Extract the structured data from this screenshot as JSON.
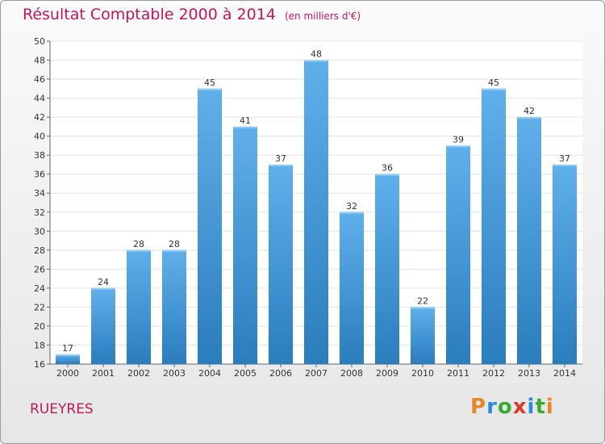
{
  "chart_data": {
    "type": "bar",
    "title": "Résultat Comptable 2000 à 2014",
    "subtitle": "(en milliers d'€)",
    "categories": [
      "2000",
      "2001",
      "2002",
      "2003",
      "2004",
      "2005",
      "2006",
      "2007",
      "2008",
      "2009",
      "2010",
      "2011",
      "2012",
      "2013",
      "2014"
    ],
    "values": [
      17,
      24,
      28,
      28,
      45,
      41,
      37,
      48,
      32,
      36,
      22,
      39,
      45,
      42,
      37
    ],
    "ylim": [
      16,
      50
    ],
    "yticks": [
      16,
      18,
      20,
      22,
      24,
      26,
      28,
      30,
      32,
      34,
      36,
      38,
      40,
      42,
      44,
      46,
      48,
      50
    ],
    "xlabel": "",
    "ylabel": "",
    "grid": true,
    "colors": {
      "bar_light": "#5fb0ea",
      "bar_dark": "#2a7dbe",
      "accent": "#c0185a"
    }
  },
  "footer": {
    "town": "RUEYRES",
    "logo": {
      "letters": [
        "P",
        "r",
        "o",
        "x",
        "i",
        "t",
        "i"
      ],
      "colors": [
        "#e8862a",
        "#2b8ad6",
        "#3aaa35",
        "#d93b2b",
        "#2b8ad6",
        "#3aaa35",
        "#e8862a"
      ]
    }
  }
}
